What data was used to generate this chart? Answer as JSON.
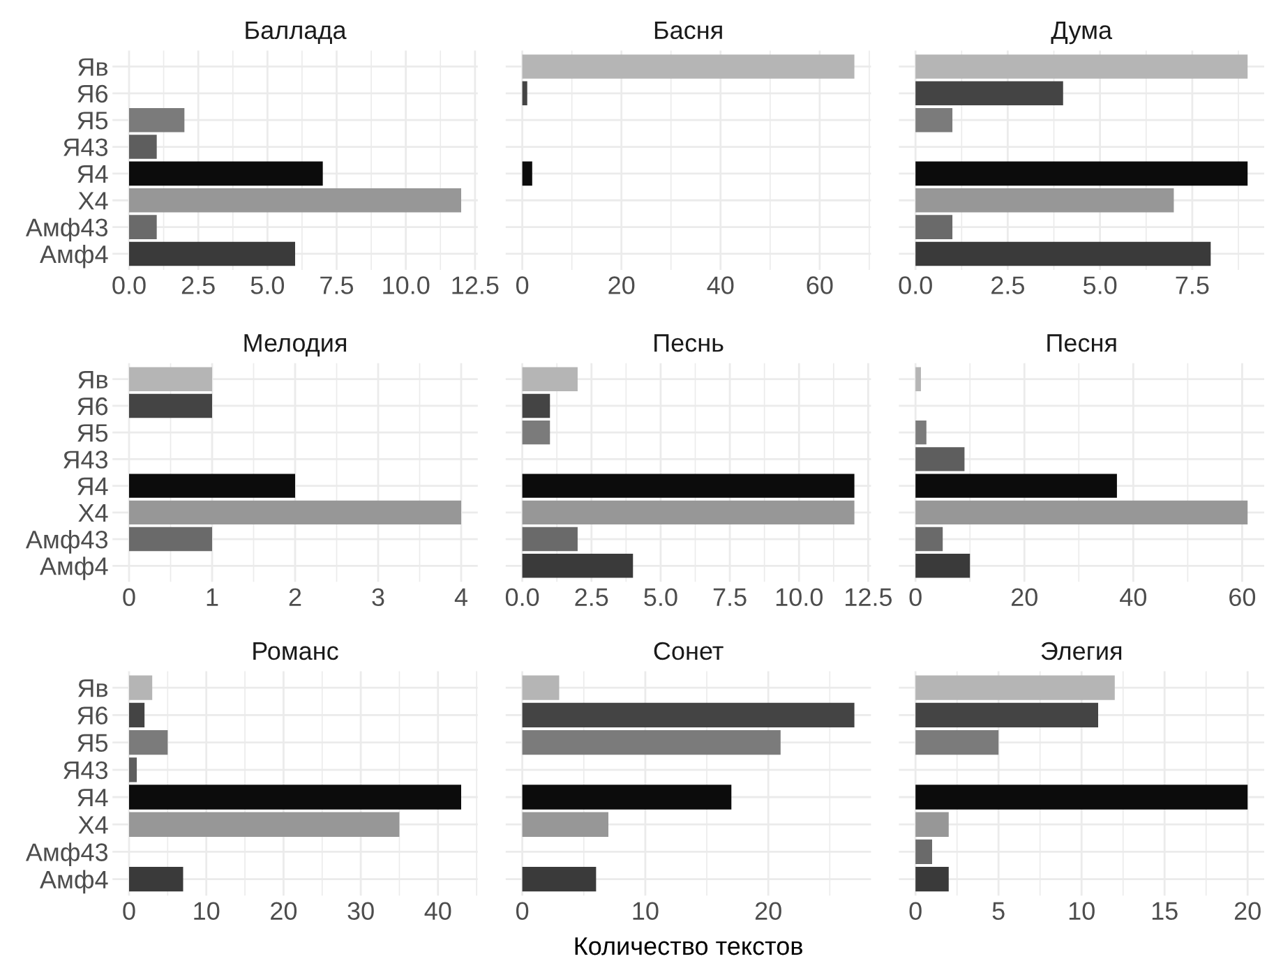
{
  "chart_data": [
    {
      "type": "bar",
      "orientation": "horizontal",
      "title": "Баллада",
      "categories": [
        "Яв",
        "Я6",
        "Я5",
        "Я43",
        "Я4",
        "Х4",
        "Амф43",
        "Амф4"
      ],
      "values": [
        null,
        null,
        2,
        1,
        7,
        12,
        1,
        6
      ],
      "colors": [
        "#b5b5b5",
        "#444444",
        "#7b7b7b",
        "#5e5e5e",
        "#0c0c0c",
        "#979797",
        "#6a6a6a",
        "#3a3a3a"
      ],
      "xlim": [
        -0.6,
        12.6
      ],
      "xticks": [
        {
          "value": 0,
          "label": "0.0"
        },
        {
          "value": 2.5,
          "label": "2.5"
        },
        {
          "value": 5,
          "label": "5.0"
        },
        {
          "value": 7.5,
          "label": "7.5"
        },
        {
          "value": 10,
          "label": "10.0"
        },
        {
          "value": 12.5,
          "label": "12.5"
        },
        {
          "value": 1.25,
          "label": null
        },
        {
          "value": 3.75,
          "label": null
        },
        {
          "value": 6.25,
          "label": null
        },
        {
          "value": 8.75,
          "label": null
        },
        {
          "value": 11.25,
          "label": null
        }
      ],
      "grid": true
    },
    {
      "type": "bar",
      "orientation": "horizontal",
      "title": "Басня",
      "categories": [
        "Яв",
        "Я6",
        "Я5",
        "Я43",
        "Я4",
        "Х4",
        "Амф43",
        "Амф4"
      ],
      "values": [
        67,
        1,
        null,
        null,
        2,
        null,
        null,
        null
      ],
      "colors": [
        "#b5b5b5",
        "#444444",
        "#7b7b7b",
        "#5e5e5e",
        "#0c0c0c",
        "#979797",
        "#6a6a6a",
        "#3a3a3a"
      ],
      "xlim": [
        -3.35,
        70.35
      ],
      "xticks": [
        0,
        20,
        40,
        60,
        {
          "value": 10,
          "label": null
        },
        {
          "value": 30,
          "label": null
        },
        {
          "value": 50,
          "label": null
        },
        {
          "value": 70,
          "label": null
        }
      ],
      "grid": true,
      "tick_labels": "x"
    },
    {
      "type": "bar",
      "orientation": "horizontal",
      "title": "Дума",
      "categories": [
        "Яв",
        "Я6",
        "Я5",
        "Я43",
        "Я4",
        "Х4",
        "Амф43",
        "Амф4"
      ],
      "values": [
        9,
        4,
        1,
        null,
        9,
        7,
        1,
        8
      ],
      "colors": [
        "#b5b5b5",
        "#444444",
        "#7b7b7b",
        "#5e5e5e",
        "#0c0c0c",
        "#979797",
        "#6a6a6a",
        "#3a3a3a"
      ],
      "xlim": [
        -0.45,
        9.45
      ],
      "xticks": [
        {
          "value": 0,
          "label": "0.0"
        },
        {
          "value": 2.5,
          "label": "2.5"
        },
        {
          "value": 5,
          "label": "5.0"
        },
        {
          "value": 7.5,
          "label": "7.5"
        },
        {
          "value": 1.25,
          "label": null
        },
        {
          "value": 3.75,
          "label": null
        },
        {
          "value": 6.25,
          "label": null
        },
        {
          "value": 8.75,
          "label": null
        }
      ],
      "grid": true,
      "tick_labels": "x"
    },
    {
      "type": "bar",
      "orientation": "horizontal",
      "title": "Мелодия",
      "categories": [
        "Яв",
        "Я6",
        "Я5",
        "Я43",
        "Я4",
        "Х4",
        "Амф43",
        "Амф4"
      ],
      "values": [
        1,
        1,
        null,
        null,
        2,
        4,
        1,
        null
      ],
      "colors": [
        "#b5b5b5",
        "#444444",
        "#7b7b7b",
        "#5e5e5e",
        "#0c0c0c",
        "#979797",
        "#6a6a6a",
        "#3a3a3a"
      ],
      "xlim": [
        -0.2,
        4.2
      ],
      "xticks": [
        0,
        1,
        2,
        3,
        4,
        {
          "value": 0.5,
          "label": null
        },
        {
          "value": 1.5,
          "label": null
        },
        {
          "value": 2.5,
          "label": null
        },
        {
          "value": 3.5,
          "label": null
        }
      ],
      "grid": true
    },
    {
      "type": "bar",
      "orientation": "horizontal",
      "title": "Песнь",
      "categories": [
        "Яв",
        "Я6",
        "Я5",
        "Я43",
        "Я4",
        "Х4",
        "Амф43",
        "Амф4"
      ],
      "values": [
        2,
        1,
        1,
        null,
        12,
        12,
        2,
        4
      ],
      "colors": [
        "#b5b5b5",
        "#444444",
        "#7b7b7b",
        "#5e5e5e",
        "#0c0c0c",
        "#979797",
        "#6a6a6a",
        "#3a3a3a"
      ],
      "xlim": [
        -0.6,
        12.6
      ],
      "xticks": [
        {
          "value": 0,
          "label": "0.0"
        },
        {
          "value": 2.5,
          "label": "2.5"
        },
        {
          "value": 5,
          "label": "5.0"
        },
        {
          "value": 7.5,
          "label": "7.5"
        },
        {
          "value": 10,
          "label": "10.0"
        },
        {
          "value": 12.5,
          "label": "12.5"
        },
        {
          "value": 1.25,
          "label": null
        },
        {
          "value": 3.75,
          "label": null
        },
        {
          "value": 6.25,
          "label": null
        },
        {
          "value": 8.75,
          "label": null
        },
        {
          "value": 11.25,
          "label": null
        }
      ],
      "grid": true,
      "tick_labels": "x"
    },
    {
      "type": "bar",
      "orientation": "horizontal",
      "title": "Песня",
      "categories": [
        "Яв",
        "Я6",
        "Я5",
        "Я43",
        "Я4",
        "Х4",
        "Амф43",
        "Амф4"
      ],
      "values": [
        1,
        null,
        2,
        9,
        37,
        61,
        5,
        10
      ],
      "colors": [
        "#b5b5b5",
        "#444444",
        "#7b7b7b",
        "#5e5e5e",
        "#0c0c0c",
        "#979797",
        "#6a6a6a",
        "#3a3a3a"
      ],
      "xlim": [
        -3.05,
        64.05
      ],
      "xticks": [
        0,
        20,
        40,
        60,
        {
          "value": 10,
          "label": null
        },
        {
          "value": 30,
          "label": null
        },
        {
          "value": 50,
          "label": null
        }
      ],
      "grid": true,
      "tick_labels": "x"
    },
    {
      "type": "bar",
      "orientation": "horizontal",
      "title": "Романс",
      "categories": [
        "Яв",
        "Я6",
        "Я5",
        "Я43",
        "Я4",
        "Х4",
        "Амф43",
        "Амф4"
      ],
      "values": [
        3,
        2,
        5,
        1,
        43,
        35,
        null,
        7
      ],
      "colors": [
        "#b5b5b5",
        "#444444",
        "#7b7b7b",
        "#5e5e5e",
        "#0c0c0c",
        "#979797",
        "#6a6a6a",
        "#3a3a3a"
      ],
      "xlim": [
        -2.15,
        45.15
      ],
      "xticks": [
        0,
        10,
        20,
        30,
        40,
        {
          "value": 5,
          "label": null
        },
        {
          "value": 15,
          "label": null
        },
        {
          "value": 25,
          "label": null
        },
        {
          "value": 35,
          "label": null
        },
        {
          "value": 45,
          "label": null
        }
      ],
      "grid": true
    },
    {
      "type": "bar",
      "orientation": "horizontal",
      "title": "Сонет",
      "xlabel": "Количество текстов",
      "categories": [
        "Яв",
        "Я6",
        "Я5",
        "Я43",
        "Я4",
        "Х4",
        "Амф43",
        "Амф4"
      ],
      "values": [
        3,
        27,
        21,
        null,
        17,
        7,
        null,
        6
      ],
      "colors": [
        "#b5b5b5",
        "#444444",
        "#7b7b7b",
        "#5e5e5e",
        "#0c0c0c",
        "#979797",
        "#6a6a6a",
        "#3a3a3a"
      ],
      "xlim": [
        -1.35,
        28.35
      ],
      "xticks": [
        0,
        10,
        20,
        {
          "value": 5,
          "label": null
        },
        {
          "value": 15,
          "label": null
        },
        {
          "value": 25,
          "label": null
        }
      ],
      "grid": true,
      "tick_labels": "x"
    },
    {
      "type": "bar",
      "orientation": "horizontal",
      "title": "Элегия",
      "categories": [
        "Яв",
        "Я6",
        "Я5",
        "Я43",
        "Я4",
        "Х4",
        "Амф43",
        "Амф4"
      ],
      "values": [
        12,
        11,
        5,
        null,
        20,
        2,
        1,
        2
      ],
      "colors": [
        "#b5b5b5",
        "#444444",
        "#7b7b7b",
        "#5e5e5e",
        "#0c0c0c",
        "#979797",
        "#6a6a6a",
        "#3a3a3a"
      ],
      "xlim": [
        -1,
        21
      ],
      "xticks": [
        0,
        5,
        10,
        15,
        20,
        {
          "value": 2.5,
          "label": null
        },
        {
          "value": 7.5,
          "label": null
        },
        {
          "value": 12.5,
          "label": null
        },
        {
          "value": 17.5,
          "label": null
        }
      ],
      "grid": true,
      "tick_labels": "x"
    }
  ]
}
